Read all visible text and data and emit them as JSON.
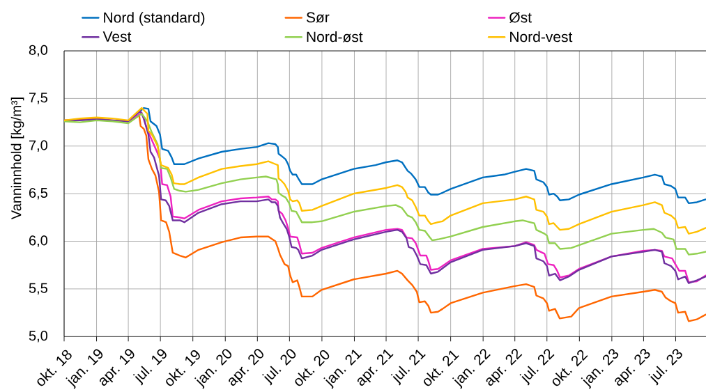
{
  "chart_data": {
    "type": "line",
    "ylabel": "Vanninnhold [kg/m³]",
    "xlim": [
      "2018-10-01",
      "2023-09-25"
    ],
    "ylim": [
      5.0,
      8.0
    ],
    "xticks": [
      {
        "value": "2018-10-01",
        "label": "okt. 18"
      },
      {
        "value": "2019-01-01",
        "label": "jan. 19"
      },
      {
        "value": "2019-04-01",
        "label": "apr. 19"
      },
      {
        "value": "2019-07-01",
        "label": "jul. 19"
      },
      {
        "value": "2019-10-01",
        "label": "okt. 19"
      },
      {
        "value": "2020-01-01",
        "label": "jan. 20"
      },
      {
        "value": "2020-04-01",
        "label": "apr. 20"
      },
      {
        "value": "2020-07-01",
        "label": "jul. 20"
      },
      {
        "value": "2020-10-01",
        "label": "okt. 20"
      },
      {
        "value": "2021-01-01",
        "label": "jan. 21"
      },
      {
        "value": "2021-04-01",
        "label": "apr. 21"
      },
      {
        "value": "2021-07-01",
        "label": "jul. 21"
      },
      {
        "value": "2021-10-01",
        "label": "okt. 21"
      },
      {
        "value": "2022-01-01",
        "label": "jan. 22"
      },
      {
        "value": "2022-04-01",
        "label": "apr. 22"
      },
      {
        "value": "2022-07-01",
        "label": "jul. 22"
      },
      {
        "value": "2022-10-01",
        "label": "okt. 22"
      },
      {
        "value": "2023-01-01",
        "label": "jan. 23"
      },
      {
        "value": "2023-04-01",
        "label": "apr. 23"
      },
      {
        "value": "2023-07-01",
        "label": "jul. 23"
      }
    ],
    "yticks": [
      {
        "value": 5.0,
        "label": "5,0"
      },
      {
        "value": 5.5,
        "label": "5,5"
      },
      {
        "value": 6.0,
        "label": "6,0"
      },
      {
        "value": 6.5,
        "label": "6,5"
      },
      {
        "value": 7.0,
        "label": "7,0"
      },
      {
        "value": 7.5,
        "label": "7,5"
      },
      {
        "value": 8.0,
        "label": "8,0"
      }
    ],
    "grid": true,
    "legend": "top",
    "series": [
      {
        "name": "Nord (standard)",
        "color": "#0070c0",
        "x": [
          "2019-04-01",
          "2019-05-15",
          "2019-05-28",
          "2019-06-03",
          "2019-06-20",
          "2019-06-30",
          "2019-07-06",
          "2019-07-23",
          "2019-08-02",
          "2019-08-09",
          "2019-09-07",
          "2019-10-17",
          "2019-12-22",
          "2020-02-13",
          "2020-03-30",
          "2020-05-02",
          "2020-05-22",
          "2020-05-29",
          "2020-05-31",
          "2020-06-07",
          "2020-06-20",
          "2020-06-27",
          "2020-07-03",
          "2020-07-10",
          "2020-07-20",
          "2020-07-26",
          "2020-08-05",
          "2020-09-04",
          "2020-09-30",
          "2020-12-30",
          "2021-03-02",
          "2021-04-01",
          "2021-05-03",
          "2021-05-16",
          "2021-06-01",
          "2021-06-11",
          "2021-06-24",
          "2021-07-04",
          "2021-07-20",
          "2021-07-30",
          "2021-08-06",
          "2021-08-26",
          "2021-09-08",
          "2021-10-01",
          "2021-12-31",
          "2022-03-01",
          "2022-04-01",
          "2022-05-03",
          "2022-05-26",
          "2022-06-01",
          "2022-06-21",
          "2022-07-01",
          "2022-07-07",
          "2022-07-20",
          "2022-07-30",
          "2022-08-07",
          "2022-09-01",
          "2022-09-30",
          "2022-12-31",
          "2023-03-31",
          "2023-05-03",
          "2023-05-23",
          "2023-05-30",
          "2023-06-18",
          "2023-06-30",
          "2023-07-08",
          "2023-07-28",
          "2023-08-07",
          "2023-08-30",
          "2023-09-24"
        ],
        "values": [
          7.26,
          7.4,
          7.39,
          7.26,
          7.21,
          7.12,
          6.97,
          6.95,
          6.88,
          6.81,
          6.81,
          6.87,
          6.94,
          6.97,
          6.99,
          7.03,
          7.02,
          6.99,
          6.92,
          6.9,
          6.86,
          6.81,
          6.74,
          6.7,
          6.7,
          6.66,
          6.6,
          6.6,
          6.65,
          6.76,
          6.8,
          6.83,
          6.85,
          6.83,
          6.74,
          6.71,
          6.65,
          6.57,
          6.57,
          6.51,
          6.49,
          6.49,
          6.51,
          6.55,
          6.67,
          6.7,
          6.73,
          6.76,
          6.74,
          6.65,
          6.62,
          6.57,
          6.49,
          6.5,
          6.47,
          6.43,
          6.44,
          6.49,
          6.6,
          6.67,
          6.7,
          6.68,
          6.6,
          6.58,
          6.55,
          6.46,
          6.46,
          6.4,
          6.41,
          6.44
        ]
      },
      {
        "name": "Sør",
        "color": "#ff6600",
        "x": [
          "2018-10-01",
          "2018-11-15",
          "2019-01-01",
          "2019-02-15",
          "2019-04-01",
          "2019-05-02",
          "2019-05-06",
          "2019-05-15",
          "2019-05-22",
          "2019-05-28",
          "2019-06-07",
          "2019-06-17",
          "2019-06-27",
          "2019-07-03",
          "2019-07-17",
          "2019-07-26",
          "2019-08-05",
          "2019-08-25",
          "2019-09-11",
          "2019-10-17",
          "2019-12-22",
          "2020-02-13",
          "2020-03-30",
          "2020-05-02",
          "2020-05-22",
          "2020-05-29",
          "2020-06-04",
          "2020-06-17",
          "2020-06-27",
          "2020-07-03",
          "2020-07-10",
          "2020-07-23",
          "2020-07-29",
          "2020-08-05",
          "2020-09-04",
          "2020-09-30",
          "2020-12-30",
          "2021-04-01",
          "2021-05-03",
          "2021-05-16",
          "2021-06-01",
          "2021-06-14",
          "2021-06-27",
          "2021-07-04",
          "2021-07-20",
          "2021-07-30",
          "2021-08-06",
          "2021-08-26",
          "2021-09-08",
          "2021-10-01",
          "2021-12-31",
          "2022-04-01",
          "2022-05-03",
          "2022-05-26",
          "2022-06-01",
          "2022-06-21",
          "2022-07-01",
          "2022-07-07",
          "2022-07-24",
          "2022-08-06",
          "2022-09-08",
          "2022-09-30",
          "2022-12-31",
          "2023-03-31",
          "2023-05-03",
          "2023-05-23",
          "2023-06-02",
          "2023-06-18",
          "2023-06-30",
          "2023-07-08",
          "2023-07-28",
          "2023-08-07",
          "2023-08-30",
          "2023-09-24"
        ],
        "values": [
          7.27,
          7.28,
          7.29,
          7.27,
          7.26,
          7.32,
          7.21,
          7.18,
          7.11,
          6.86,
          6.76,
          6.69,
          6.52,
          6.22,
          6.2,
          6.1,
          5.88,
          5.85,
          5.83,
          5.91,
          5.99,
          6.04,
          6.05,
          6.05,
          6.0,
          5.93,
          5.86,
          5.76,
          5.74,
          5.64,
          5.57,
          5.59,
          5.52,
          5.42,
          5.42,
          5.49,
          5.6,
          5.66,
          5.69,
          5.66,
          5.59,
          5.54,
          5.47,
          5.36,
          5.37,
          5.32,
          5.25,
          5.26,
          5.29,
          5.35,
          5.46,
          5.53,
          5.55,
          5.52,
          5.43,
          5.4,
          5.35,
          5.27,
          5.29,
          5.19,
          5.21,
          5.3,
          5.42,
          5.47,
          5.49,
          5.47,
          5.41,
          5.37,
          5.35,
          5.25,
          5.26,
          5.16,
          5.18,
          5.23
        ]
      },
      {
        "name": "Øst",
        "color": "#ee22c0",
        "x": [
          "2019-02-15",
          "2019-04-01",
          "2019-05-09",
          "2019-05-25",
          "2019-06-07",
          "2019-06-20",
          "2019-06-30",
          "2019-07-06",
          "2019-07-20",
          "2019-07-30",
          "2019-08-05",
          "2019-08-25",
          "2019-09-07",
          "2019-10-17",
          "2019-12-22",
          "2020-02-13",
          "2020-03-30",
          "2020-05-02",
          "2020-05-12",
          "2020-05-22",
          "2020-05-29",
          "2020-05-31",
          "2020-06-10",
          "2020-06-20",
          "2020-06-27",
          "2020-07-03",
          "2020-07-23",
          "2020-07-29",
          "2020-08-05",
          "2020-09-04",
          "2020-09-30",
          "2020-12-30",
          "2021-04-01",
          "2021-05-03",
          "2021-05-16",
          "2021-05-29",
          "2021-06-14",
          "2021-06-24",
          "2021-07-07",
          "2021-07-24",
          "2021-07-30",
          "2021-08-06",
          "2021-08-26",
          "2021-09-08",
          "2021-10-01",
          "2021-12-31",
          "2022-04-01",
          "2022-05-03",
          "2022-05-26",
          "2022-06-01",
          "2022-06-24",
          "2022-07-04",
          "2022-07-20",
          "2022-07-30",
          "2022-08-07",
          "2022-09-01",
          "2022-09-30",
          "2022-12-31",
          "2023-03-31",
          "2023-05-03",
          "2023-05-23",
          "2023-05-30",
          "2023-06-21",
          "2023-06-30",
          "2023-07-11",
          "2023-07-28",
          "2023-08-07",
          "2023-08-30",
          "2023-09-24"
        ],
        "values": [
          7.27,
          7.26,
          7.35,
          7.17,
          7.06,
          6.95,
          6.86,
          6.6,
          6.59,
          6.47,
          6.26,
          6.25,
          6.24,
          6.33,
          6.42,
          6.45,
          6.46,
          6.47,
          6.44,
          6.44,
          6.42,
          6.32,
          6.29,
          6.22,
          6.14,
          6.05,
          6.04,
          5.97,
          5.87,
          5.88,
          5.93,
          6.04,
          6.12,
          6.13,
          6.12,
          6.04,
          6.03,
          5.98,
          5.85,
          5.85,
          5.79,
          5.7,
          5.71,
          5.74,
          5.8,
          5.92,
          5.95,
          5.99,
          5.96,
          5.91,
          5.87,
          5.76,
          5.75,
          5.69,
          5.62,
          5.64,
          5.71,
          5.84,
          5.9,
          5.91,
          5.9,
          5.84,
          5.82,
          5.76,
          5.69,
          5.69,
          5.57,
          5.58,
          5.64
        ]
      },
      {
        "name": "Vest",
        "color": "#7030a0",
        "x": [
          "2018-10-01",
          "2018-11-15",
          "2019-01-01",
          "2019-02-15",
          "2019-04-01",
          "2019-05-05",
          "2019-05-15",
          "2019-05-28",
          "2019-06-03",
          "2019-06-13",
          "2019-06-27",
          "2019-07-03",
          "2019-07-16",
          "2019-07-26",
          "2019-08-05",
          "2019-08-25",
          "2019-09-07",
          "2019-10-17",
          "2019-12-22",
          "2020-02-13",
          "2020-03-30",
          "2020-05-02",
          "2020-05-12",
          "2020-05-22",
          "2020-05-29",
          "2020-06-04",
          "2020-06-13",
          "2020-06-23",
          "2020-06-30",
          "2020-07-07",
          "2020-07-20",
          "2020-07-26",
          "2020-08-05",
          "2020-09-04",
          "2020-09-30",
          "2020-12-30",
          "2021-04-01",
          "2021-05-03",
          "2021-05-16",
          "2021-05-29",
          "2021-06-04",
          "2021-06-17",
          "2021-06-27",
          "2021-07-07",
          "2021-07-24",
          "2021-08-06",
          "2021-08-26",
          "2021-10-01",
          "2021-12-31",
          "2022-04-01",
          "2022-05-03",
          "2022-05-26",
          "2022-06-01",
          "2022-06-21",
          "2022-07-01",
          "2022-07-07",
          "2022-07-24",
          "2022-08-07",
          "2022-09-01",
          "2022-09-30",
          "2022-12-31",
          "2023-03-31",
          "2023-05-03",
          "2023-05-23",
          "2023-05-30",
          "2023-06-18",
          "2023-06-30",
          "2023-07-08",
          "2023-07-28",
          "2023-08-07",
          "2023-08-30",
          "2023-09-24"
        ],
        "values": [
          7.27,
          7.27,
          7.28,
          7.27,
          7.26,
          7.37,
          7.29,
          7.12,
          6.94,
          6.88,
          6.69,
          6.44,
          6.43,
          6.37,
          6.22,
          6.22,
          6.2,
          6.3,
          6.39,
          6.42,
          6.42,
          6.44,
          6.41,
          6.41,
          6.37,
          6.25,
          6.19,
          6.13,
          6.05,
          5.94,
          5.93,
          5.91,
          5.82,
          5.85,
          5.91,
          6.02,
          6.1,
          6.12,
          6.1,
          6.03,
          5.94,
          5.92,
          5.85,
          5.76,
          5.75,
          5.66,
          5.68,
          5.78,
          5.91,
          5.95,
          5.98,
          5.95,
          5.82,
          5.79,
          5.74,
          5.64,
          5.66,
          5.59,
          5.63,
          5.7,
          5.84,
          5.89,
          5.91,
          5.89,
          5.77,
          5.74,
          5.69,
          5.6,
          5.63,
          5.56,
          5.59,
          5.63
        ]
      },
      {
        "name": "Nord-øst",
        "color": "#92d050",
        "x": [
          "2018-10-01",
          "2018-11-15",
          "2019-01-01",
          "2019-02-15",
          "2019-04-01",
          "2019-05-09",
          "2019-05-25",
          "2019-06-07",
          "2019-06-23",
          "2019-07-03",
          "2019-07-20",
          "2019-07-30",
          "2019-08-09",
          "2019-08-25",
          "2019-09-11",
          "2019-10-17",
          "2019-12-22",
          "2020-02-13",
          "2020-03-30",
          "2020-04-25",
          "2020-05-25",
          "2020-05-29",
          "2020-05-31",
          "2020-06-10",
          "2020-06-20",
          "2020-06-30",
          "2020-07-07",
          "2020-07-20",
          "2020-07-26",
          "2020-08-05",
          "2020-09-04",
          "2020-09-30",
          "2020-12-30",
          "2021-04-01",
          "2021-04-29",
          "2021-05-16",
          "2021-06-01",
          "2021-06-14",
          "2021-06-24",
          "2021-07-04",
          "2021-07-20",
          "2021-08-03",
          "2021-08-10",
          "2021-08-26",
          "2021-10-01",
          "2021-12-31",
          "2022-04-01",
          "2022-04-23",
          "2022-05-26",
          "2022-06-01",
          "2022-06-24",
          "2022-07-01",
          "2022-07-07",
          "2022-07-24",
          "2022-08-07",
          "2022-09-08",
          "2022-09-30",
          "2022-12-31",
          "2023-03-31",
          "2023-04-30",
          "2023-05-23",
          "2023-06-02",
          "2023-06-25",
          "2023-07-03",
          "2023-07-28",
          "2023-08-07",
          "2023-08-30",
          "2023-09-24"
        ],
        "values": [
          7.26,
          7.25,
          7.27,
          7.26,
          7.24,
          7.34,
          7.26,
          7.14,
          7.02,
          6.77,
          6.76,
          6.67,
          6.55,
          6.53,
          6.52,
          6.54,
          6.61,
          6.65,
          6.67,
          6.68,
          6.65,
          6.6,
          6.51,
          6.48,
          6.46,
          6.4,
          6.32,
          6.31,
          6.27,
          6.2,
          6.2,
          6.21,
          6.31,
          6.37,
          6.38,
          6.35,
          6.27,
          6.25,
          6.2,
          6.12,
          6.11,
          6.04,
          6.01,
          6.02,
          6.05,
          6.15,
          6.21,
          6.22,
          6.19,
          6.12,
          6.08,
          6.06,
          5.98,
          5.98,
          5.92,
          5.93,
          5.96,
          6.08,
          6.12,
          6.13,
          6.09,
          6.04,
          6.02,
          5.92,
          5.92,
          5.86,
          5.87,
          5.89
        ]
      },
      {
        "name": "Nord-vest",
        "color": "#ffc000",
        "x": [
          "2018-10-01",
          "2018-11-15",
          "2019-01-01",
          "2019-02-15",
          "2019-04-01",
          "2019-05-09",
          "2019-05-25",
          "2019-05-28",
          "2019-06-07",
          "2019-06-23",
          "2019-07-03",
          "2019-07-23",
          "2019-08-02",
          "2019-08-08",
          "2019-08-25",
          "2019-09-07",
          "2019-10-17",
          "2019-12-22",
          "2020-02-13",
          "2020-03-30",
          "2020-05-02",
          "2020-05-22",
          "2020-05-29",
          "2020-05-31",
          "2020-06-07",
          "2020-06-17",
          "2020-06-27",
          "2020-07-03",
          "2020-07-10",
          "2020-07-23",
          "2020-07-29",
          "2020-08-05",
          "2020-09-04",
          "2020-09-30",
          "2020-12-30",
          "2021-04-01",
          "2021-05-03",
          "2021-05-16",
          "2021-05-26",
          "2021-06-01",
          "2021-06-14",
          "2021-06-24",
          "2021-07-04",
          "2021-07-20",
          "2021-07-30",
          "2021-08-06",
          "2021-08-26",
          "2021-09-08",
          "2021-10-01",
          "2021-12-31",
          "2022-04-01",
          "2022-05-03",
          "2022-05-26",
          "2022-06-01",
          "2022-06-21",
          "2022-07-01",
          "2022-07-07",
          "2022-07-20",
          "2022-07-30",
          "2022-08-07",
          "2022-09-01",
          "2022-09-30",
          "2022-12-31",
          "2023-03-31",
          "2023-05-03",
          "2023-05-23",
          "2023-05-30",
          "2023-06-18",
          "2023-06-30",
          "2023-07-08",
          "2023-07-28",
          "2023-08-07",
          "2023-08-30",
          "2023-09-24"
        ],
        "values": [
          7.27,
          7.29,
          7.3,
          7.29,
          7.27,
          7.4,
          7.34,
          7.16,
          7.12,
          7.0,
          6.8,
          6.77,
          6.7,
          6.61,
          6.6,
          6.6,
          6.67,
          6.76,
          6.79,
          6.81,
          6.84,
          6.81,
          6.8,
          6.66,
          6.64,
          6.6,
          6.53,
          6.44,
          6.42,
          6.43,
          6.4,
          6.32,
          6.33,
          6.37,
          6.5,
          6.56,
          6.59,
          6.57,
          6.52,
          6.46,
          6.43,
          6.36,
          6.27,
          6.27,
          6.21,
          6.18,
          6.2,
          6.21,
          6.27,
          6.4,
          6.44,
          6.47,
          6.44,
          6.33,
          6.31,
          6.26,
          6.18,
          6.19,
          6.15,
          6.12,
          6.13,
          6.18,
          6.31,
          6.38,
          6.41,
          6.38,
          6.3,
          6.27,
          6.23,
          6.14,
          6.15,
          6.08,
          6.1,
          6.14
        ]
      }
    ]
  }
}
